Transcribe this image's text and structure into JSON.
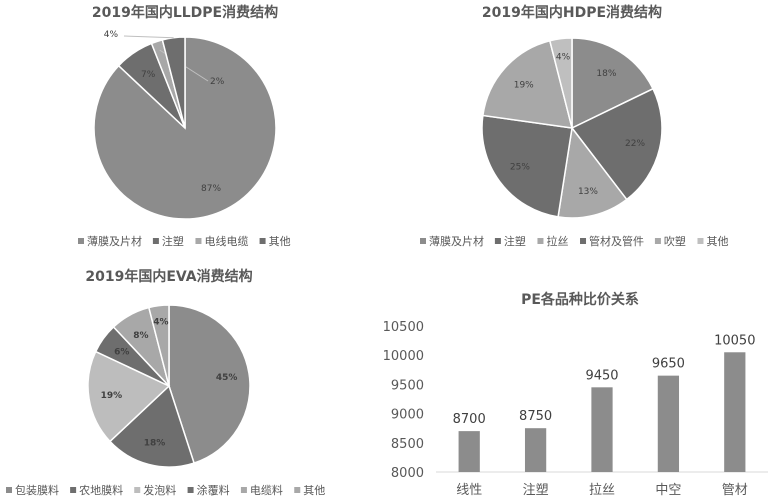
{
  "chart_data": [
    {
      "type": "pie",
      "title": "2019年国内LLDPE消费结构",
      "categories": [
        "薄膜及片材",
        "注塑",
        "电线电缆",
        "其他"
      ],
      "values": [
        87,
        7,
        2,
        4
      ],
      "value_labels": [
        "87%",
        "7%",
        "2%",
        "4%"
      ],
      "colors": [
        "#8c8c8c",
        "#6e6e6e",
        "#a8a8a8",
        "#6e6e6e"
      ],
      "legend_position": "bottom"
    },
    {
      "type": "pie",
      "title": "2019年国内HDPE消费结构",
      "categories": [
        "薄膜及片材",
        "注塑",
        "拉丝",
        "管材及管件",
        "吹塑",
        "其他"
      ],
      "values": [
        18,
        22,
        13,
        25,
        19,
        4
      ],
      "value_labels": [
        "18%",
        "22%",
        "13%",
        "25%",
        "19%",
        "4%"
      ],
      "colors": [
        "#8c8c8c",
        "#6e6e6e",
        "#a8a8a8",
        "#6e6e6e",
        "#a8a8a8",
        "#bfbfbf"
      ],
      "legend_position": "bottom"
    },
    {
      "type": "pie",
      "title": "2019年国内EVA消费结构",
      "categories": [
        "包装膜料",
        "农地膜料",
        "发泡料",
        "涂覆料",
        "电缆料",
        "其他"
      ],
      "values": [
        45,
        18,
        19,
        6,
        8,
        4
      ],
      "value_labels": [
        "45%",
        "18%",
        "19%",
        "6%",
        "8%",
        "4%"
      ],
      "colors": [
        "#8c8c8c",
        "#6e6e6e",
        "#bdbdbd",
        "#6e6e6e",
        "#a8a8a8",
        "#a8a8a8"
      ],
      "legend_position": "bottom"
    },
    {
      "type": "bar",
      "title": "PE各品种比价关系",
      "categories": [
        "线性",
        "注塑",
        "拉丝",
        "中空",
        "管材"
      ],
      "values": [
        8700,
        8750,
        9450,
        9650,
        10050
      ],
      "ylim": [
        8000,
        10500
      ],
      "yticks": [
        8000,
        8500,
        9000,
        9500,
        10000,
        10500
      ],
      "ytick_labels": [
        "8000",
        "8500",
        "9000",
        "9500",
        "10000",
        "10500"
      ],
      "bar_color": "#8c8c8c",
      "grid": false
    }
  ]
}
